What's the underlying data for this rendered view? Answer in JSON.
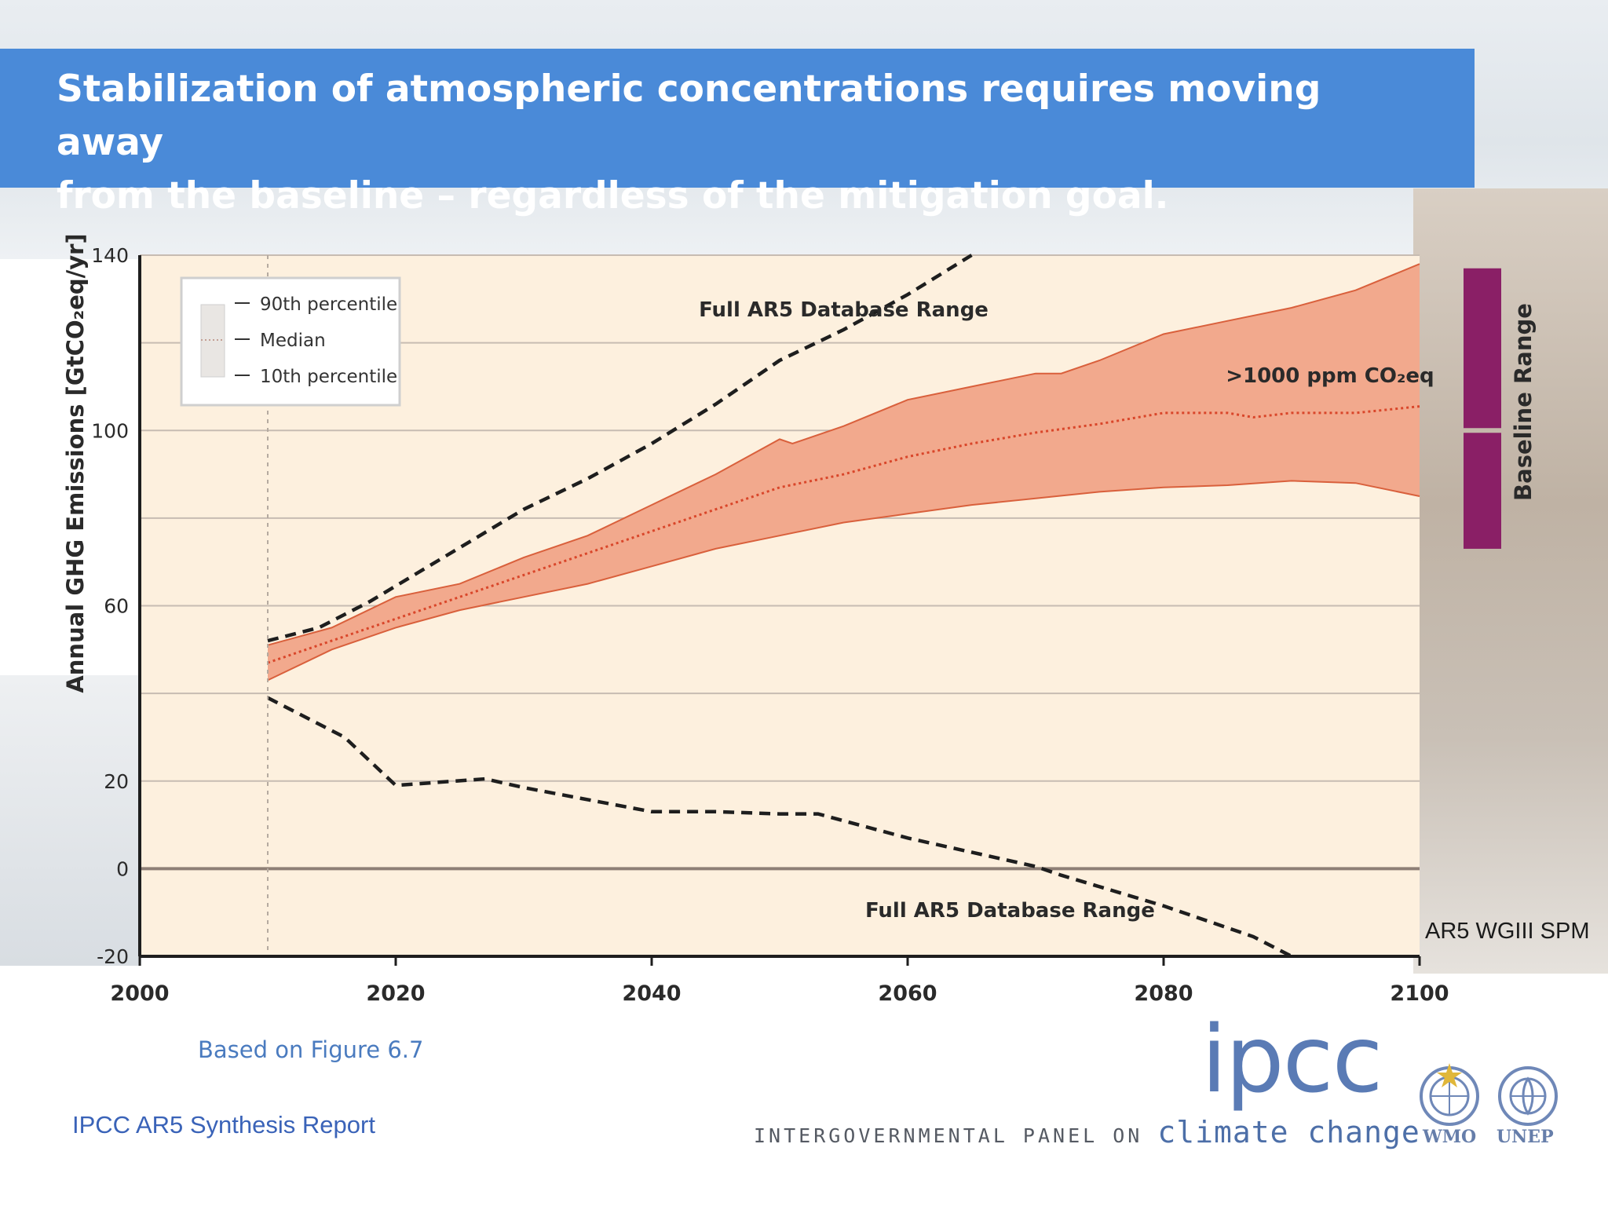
{
  "title": "Stabilization of atmospheric concentrations requires moving away\nfrom the baseline – regardless of the mitigation goal.",
  "source_label": "AR5 WGIII SPM",
  "based_on": "Based on Figure 6.7",
  "report": "IPCC AR5 Synthesis Report",
  "logo": {
    "ipcc": "ipcc",
    "panel_text": "INTERGOVERNMENTAL PANEL ON",
    "climate_text": "climate change",
    "wmo": "WMO",
    "unep": "UNEP"
  },
  "colors": {
    "title_bar": "#4a8ad8",
    "plot_bg": "#fdf0de",
    "band_fill": "#f2a98d",
    "band_edge": "#d9603c",
    "median": "#d9462a",
    "dashed": "#1e1e1e",
    "baseline_bar": "#8a1f66"
  },
  "chart_data": {
    "type": "area",
    "ylabel": "Annual GHG Emissions [GtCO₂eq/yr]",
    "ylim": [
      -20,
      140
    ],
    "xlim": [
      2000,
      2100
    ],
    "x_ticks": [
      "2000",
      "2020",
      "2040",
      "2060",
      "2080",
      "2100"
    ],
    "y_ticks": [
      "140",
      "100",
      "60",
      "20",
      "0",
      "-20"
    ],
    "grid": "horizontal",
    "legend": {
      "position": "top-left",
      "items": [
        "90th percentile",
        "Median",
        "10th percentile"
      ]
    },
    "series": [
      {
        "name": "90th percentile",
        "x": [
          2010,
          2015,
          2020,
          2025,
          2030,
          2035,
          2040,
          2045,
          2050,
          2051,
          2055,
          2060,
          2065,
          2070,
          2072,
          2075,
          2080,
          2085,
          2090,
          2095,
          2100
        ],
        "values": [
          51,
          55,
          62,
          65,
          71,
          76,
          83,
          90,
          98,
          97,
          101,
          107,
          110,
          113,
          113,
          116,
          122,
          125,
          128,
          132,
          138
        ]
      },
      {
        "name": "Median",
        "x": [
          2010,
          2015,
          2020,
          2025,
          2030,
          2035,
          2040,
          2045,
          2050,
          2055,
          2060,
          2065,
          2070,
          2075,
          2080,
          2085,
          2087,
          2090,
          2095,
          2100
        ],
        "values": [
          47,
          52,
          57,
          62,
          67,
          72,
          77,
          82,
          87,
          90,
          94,
          97,
          99.5,
          101.5,
          104,
          104,
          103,
          104,
          104,
          105.5
        ]
      },
      {
        "name": "10th percentile",
        "x": [
          2010,
          2015,
          2020,
          2025,
          2030,
          2035,
          2040,
          2045,
          2050,
          2055,
          2060,
          2065,
          2070,
          2075,
          2080,
          2085,
          2090,
          2095,
          2100
        ],
        "values": [
          43,
          50,
          55,
          59,
          62,
          65,
          69,
          73,
          76,
          79,
          81,
          83,
          84.5,
          86,
          87,
          87.5,
          88.5,
          88,
          85
        ]
      },
      {
        "name": "Full AR5 Database Range",
        "x": [
          2010,
          2014,
          2018,
          2022,
          2026,
          2030,
          2035,
          2040,
          2045,
          2050,
          2055,
          2060,
          2065
        ],
        "values": [
          52,
          55,
          61,
          68,
          75,
          82,
          89,
          97,
          106,
          116,
          123,
          131,
          140
        ]
      },
      {
        "name": "Full AR5 Database Range",
        "x": [
          2010,
          2016,
          2020,
          2027,
          2030,
          2040,
          2045,
          2050,
          2053,
          2060,
          2070,
          2072,
          2080,
          2087,
          2090
        ],
        "values": [
          39,
          30,
          19,
          20.5,
          18.5,
          13,
          13,
          12.5,
          12.5,
          7,
          0.5,
          -1.5,
          -8.5,
          -15.5,
          -20
        ]
      }
    ],
    "annotations": [
      {
        "text": "Full AR5 Database Range",
        "x": 2055,
        "y": 126
      },
      {
        "text": ">1000 ppm CO₂eq",
        "x": 2093,
        "y": 111
      },
      {
        "text": "Full AR5 Database Range",
        "x": 2068,
        "y": -11
      }
    ],
    "baseline_range": {
      "label": "Baseline Range",
      "ymin": 73,
      "ymax": 137,
      "mid": 100
    }
  }
}
